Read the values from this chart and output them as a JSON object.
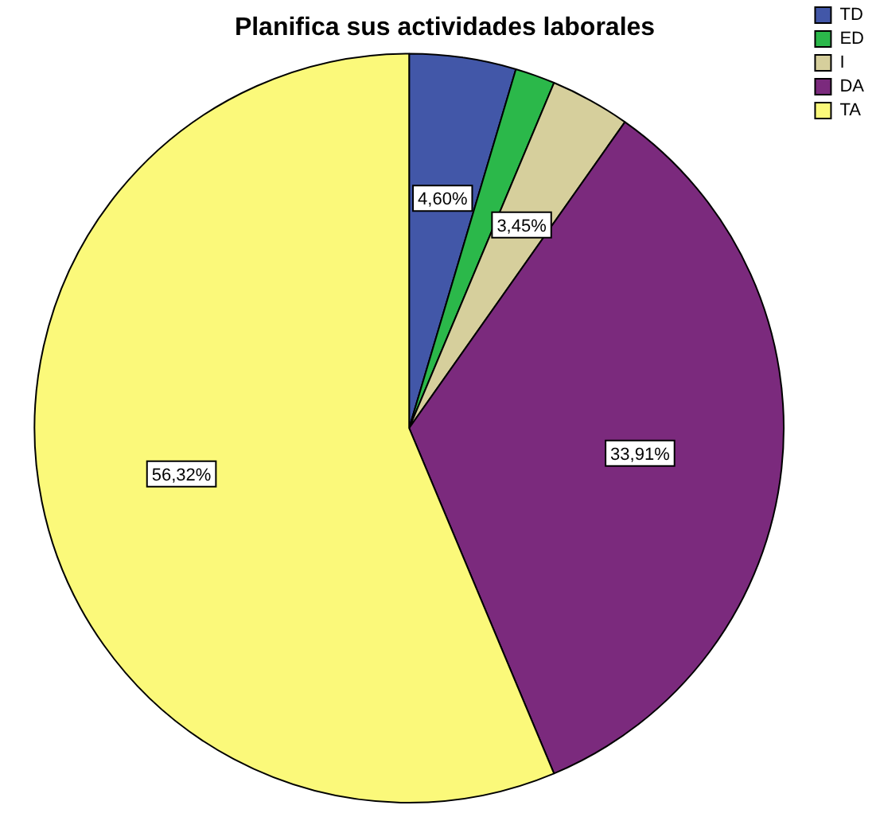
{
  "chart_data": {
    "type": "pie",
    "title": "Planifica sus actividades laborales",
    "categories": [
      "TD",
      "ED",
      "I",
      "DA",
      "TA"
    ],
    "values": [
      4.6,
      1.72,
      3.45,
      33.91,
      56.32
    ],
    "colors": [
      "#4257a8",
      "#2bb84a",
      "#d6cf9c",
      "#7b2a7d",
      "#fbf97a"
    ],
    "value_labels": [
      "4,60%",
      null,
      "3,45%",
      "33,91%",
      "56,32%"
    ],
    "legend": "top right"
  }
}
